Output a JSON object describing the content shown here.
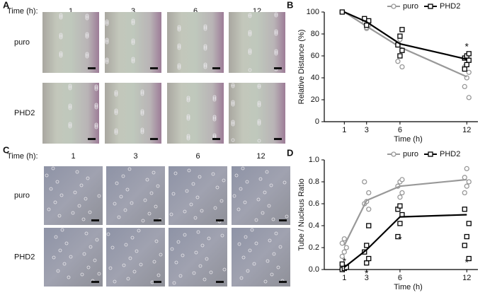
{
  "panel_a": {
    "label": "A",
    "time_label": "Time (h):",
    "times": [
      "1",
      "3",
      "6",
      "12"
    ],
    "rows": [
      "puro",
      "PHD2"
    ]
  },
  "panel_c": {
    "label": "C",
    "time_label": "Time (h):",
    "times": [
      "1",
      "3",
      "6",
      "12"
    ],
    "rows": [
      "puro",
      "PHD2"
    ]
  },
  "chart_data": [
    {
      "panel": "B",
      "type": "line",
      "x": [
        1,
        3,
        6,
        12
      ],
      "xlim": [
        -0.8,
        13
      ],
      "xticks": [
        1,
        3,
        6,
        12
      ],
      "ylim": [
        0,
        100
      ],
      "yticks": [
        0,
        20,
        40,
        60,
        80,
        100
      ],
      "xlabel": "Time (h)",
      "ylabel": "Relative Distance (%)",
      "legend": "top",
      "series": [
        {
          "name": "puro",
          "color": "#999999",
          "marker": "circle",
          "values": [
            100,
            87,
            68,
            41
          ],
          "replicate_x": [
            1,
            3,
            3,
            3,
            3,
            6,
            6,
            6,
            6,
            6,
            6,
            12,
            12,
            12,
            12,
            12
          ],
          "replicate_y": [
            100,
            85,
            88,
            90,
            86,
            50,
            55,
            60,
            65,
            70,
            75,
            22,
            32,
            40,
            45,
            50
          ]
        },
        {
          "name": "PHD2",
          "color": "#000000",
          "marker": "square",
          "values": [
            100,
            91,
            71,
            57
          ],
          "replicate_x": [
            1,
            3,
            3,
            3,
            6,
            6,
            6,
            6,
            6,
            12,
            12,
            12,
            12,
            12,
            12
          ],
          "replicate_y": [
            100,
            88,
            92,
            94,
            60,
            65,
            70,
            78,
            84,
            48,
            52,
            56,
            58,
            60,
            62
          ]
        }
      ],
      "annotations": [
        {
          "text": "*",
          "x": 12,
          "y": 68
        }
      ]
    },
    {
      "panel": "D",
      "type": "line",
      "x": [
        1,
        3,
        6,
        12
      ],
      "xlim": [
        -0.8,
        13
      ],
      "xticks": [
        1,
        3,
        6,
        12
      ],
      "ylim": [
        0,
        1
      ],
      "yticks": [
        {
          "value": 0,
          "label": "0.0"
        },
        0.2,
        0.4,
        0.6,
        0.8,
        {
          "value": 1,
          "label": "1.0"
        }
      ],
      "xlabel": "Time (h)",
      "ylabel": "Tube / Nucleus Ratio",
      "legend": "top",
      "series": [
        {
          "name": "puro",
          "color": "#999999",
          "marker": "circle",
          "values": [
            0.22,
            0.63,
            0.76,
            0.82
          ],
          "replicate_x": [
            1,
            1,
            1,
            1,
            1,
            3,
            3,
            3,
            3,
            3,
            6,
            6,
            6,
            6,
            6,
            12,
            12,
            12,
            12,
            12
          ],
          "replicate_y": [
            0.12,
            0.16,
            0.2,
            0.24,
            0.28,
            0.55,
            0.6,
            0.62,
            0.7,
            0.8,
            0.66,
            0.7,
            0.76,
            0.8,
            0.82,
            0.7,
            0.76,
            0.8,
            0.84,
            0.92
          ]
        },
        {
          "name": "PHD2",
          "color": "#000000",
          "marker": "square",
          "values": [
            0.02,
            0.18,
            0.48,
            0.5
          ],
          "replicate_x": [
            1,
            1,
            1,
            1,
            3,
            3,
            3,
            3,
            3,
            6,
            6,
            6,
            6,
            6,
            12,
            12,
            12,
            12,
            12
          ],
          "replicate_y": [
            0,
            0.01,
            0.02,
            0.05,
            0.06,
            0.1,
            0.16,
            0.22,
            0.4,
            0.3,
            0.42,
            0.5,
            0.55,
            0.58,
            0.1,
            0.22,
            0.3,
            0.42,
            0.55
          ]
        }
      ],
      "annotations": [
        {
          "text": "*",
          "x": 1,
          "y": 0.07
        },
        {
          "text": "*",
          "x": 3,
          "y": -0.04
        },
        {
          "text": "*",
          "x": 6,
          "y": 0.27
        },
        {
          "text": "*",
          "x": 12,
          "y": 0.06
        }
      ]
    }
  ]
}
